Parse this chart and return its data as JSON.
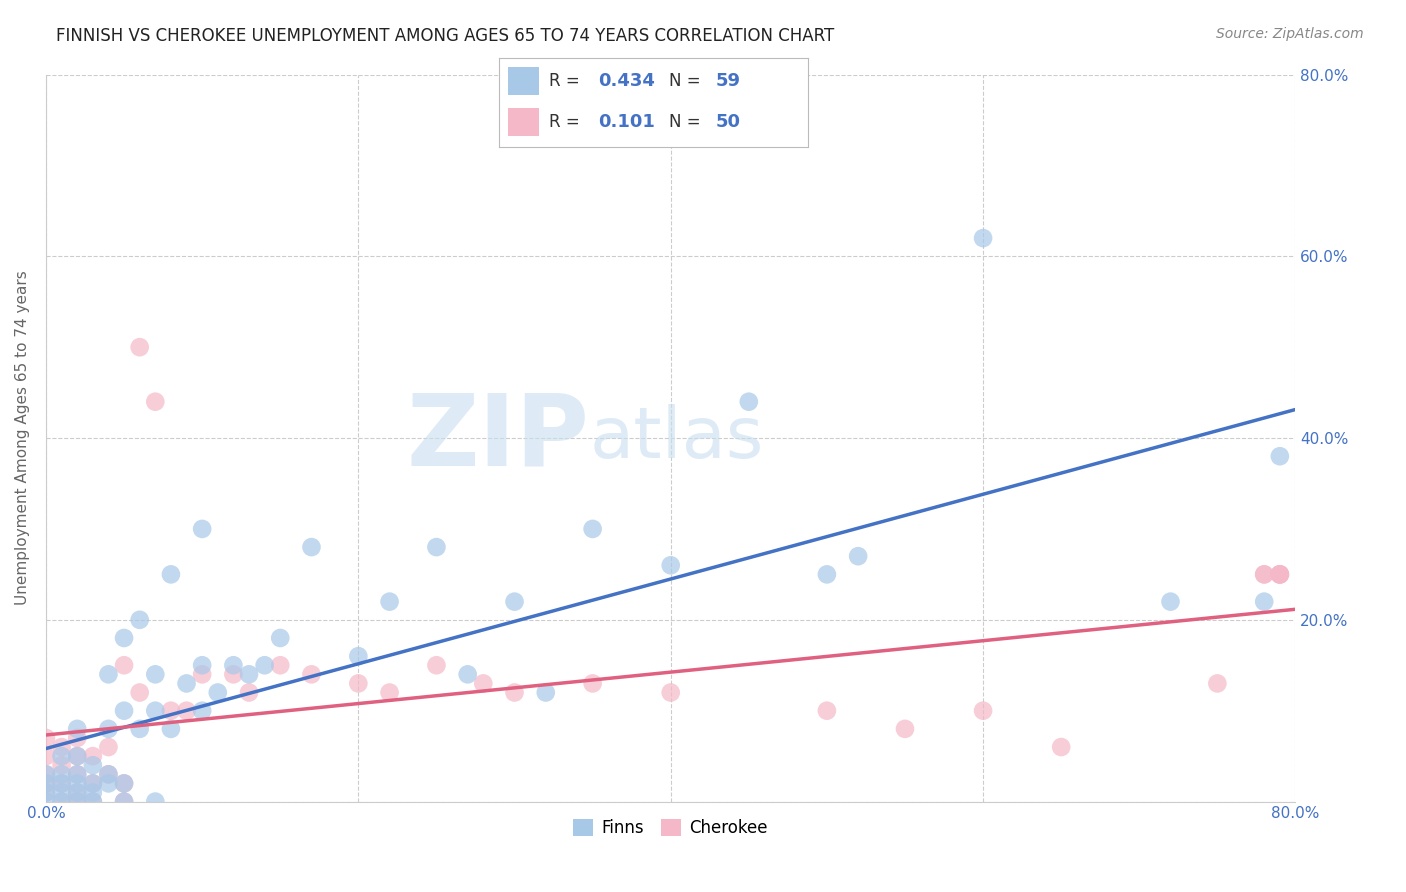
{
  "title": "FINNISH VS CHEROKEE UNEMPLOYMENT AMONG AGES 65 TO 74 YEARS CORRELATION CHART",
  "source": "Source: ZipAtlas.com",
  "ylabel": "Unemployment Among Ages 65 to 74 years",
  "xlim": [
    0.0,
    0.8
  ],
  "ylim": [
    0.0,
    0.8
  ],
  "xticks": [
    0.0,
    0.2,
    0.4,
    0.6,
    0.8
  ],
  "yticks": [
    0.0,
    0.2,
    0.4,
    0.6,
    0.8
  ],
  "xticklabels": [
    "0.0%",
    "",
    "",
    "",
    "80.0%"
  ],
  "yticklabels_right": [
    "",
    "20.0%",
    "40.0%",
    "60.0%",
    "80.0%"
  ],
  "finns_color": "#a8c8e8",
  "cherokee_color": "#f4b8c8",
  "finns_line_color": "#4472c4",
  "cherokee_line_color": "#e06080",
  "finns_R": 0.434,
  "finns_N": 59,
  "cherokee_R": 0.101,
  "cherokee_N": 50,
  "legend_label_finns": "Finns",
  "legend_label_cherokee": "Cherokee",
  "watermark_zip": "ZIP",
  "watermark_atlas": "atlas",
  "background_color": "#ffffff",
  "grid_color": "#cccccc",
  "tick_color": "#4472c4",
  "finns_x": [
    0.0,
    0.0,
    0.0,
    0.0,
    0.01,
    0.01,
    0.01,
    0.01,
    0.01,
    0.02,
    0.02,
    0.02,
    0.02,
    0.02,
    0.02,
    0.03,
    0.03,
    0.03,
    0.03,
    0.04,
    0.04,
    0.04,
    0.04,
    0.05,
    0.05,
    0.05,
    0.05,
    0.06,
    0.06,
    0.07,
    0.07,
    0.07,
    0.08,
    0.08,
    0.09,
    0.1,
    0.1,
    0.1,
    0.11,
    0.12,
    0.13,
    0.14,
    0.15,
    0.17,
    0.2,
    0.22,
    0.25,
    0.27,
    0.3,
    0.32,
    0.35,
    0.4,
    0.45,
    0.5,
    0.52,
    0.6,
    0.72,
    0.78,
    0.79
  ],
  "finns_y": [
    0.0,
    0.01,
    0.02,
    0.03,
    0.0,
    0.01,
    0.02,
    0.03,
    0.05,
    0.0,
    0.01,
    0.02,
    0.03,
    0.05,
    0.08,
    0.0,
    0.01,
    0.02,
    0.04,
    0.02,
    0.03,
    0.08,
    0.14,
    0.0,
    0.02,
    0.1,
    0.18,
    0.08,
    0.2,
    0.0,
    0.1,
    0.14,
    0.08,
    0.25,
    0.13,
    0.1,
    0.15,
    0.3,
    0.12,
    0.15,
    0.14,
    0.15,
    0.18,
    0.28,
    0.16,
    0.22,
    0.28,
    0.14,
    0.22,
    0.12,
    0.3,
    0.26,
    0.44,
    0.25,
    0.27,
    0.62,
    0.22,
    0.22,
    0.38
  ],
  "cherokee_x": [
    0.0,
    0.0,
    0.0,
    0.0,
    0.0,
    0.01,
    0.01,
    0.01,
    0.01,
    0.02,
    0.02,
    0.02,
    0.02,
    0.02,
    0.03,
    0.03,
    0.03,
    0.04,
    0.04,
    0.05,
    0.05,
    0.05,
    0.06,
    0.06,
    0.07,
    0.08,
    0.09,
    0.1,
    0.12,
    0.13,
    0.15,
    0.17,
    0.2,
    0.22,
    0.25,
    0.28,
    0.3,
    0.35,
    0.4,
    0.5,
    0.55,
    0.6,
    0.65,
    0.75,
    0.78,
    0.78,
    0.79,
    0.79,
    0.79,
    0.79
  ],
  "cherokee_y": [
    0.01,
    0.02,
    0.03,
    0.05,
    0.07,
    0.0,
    0.02,
    0.04,
    0.06,
    0.0,
    0.01,
    0.03,
    0.05,
    0.07,
    0.0,
    0.02,
    0.05,
    0.03,
    0.06,
    0.0,
    0.02,
    0.15,
    0.12,
    0.5,
    0.44,
    0.1,
    0.1,
    0.14,
    0.14,
    0.12,
    0.15,
    0.14,
    0.13,
    0.12,
    0.15,
    0.13,
    0.12,
    0.13,
    0.12,
    0.1,
    0.08,
    0.1,
    0.06,
    0.13,
    0.25,
    0.25,
    0.25,
    0.25,
    0.25,
    0.25
  ]
}
